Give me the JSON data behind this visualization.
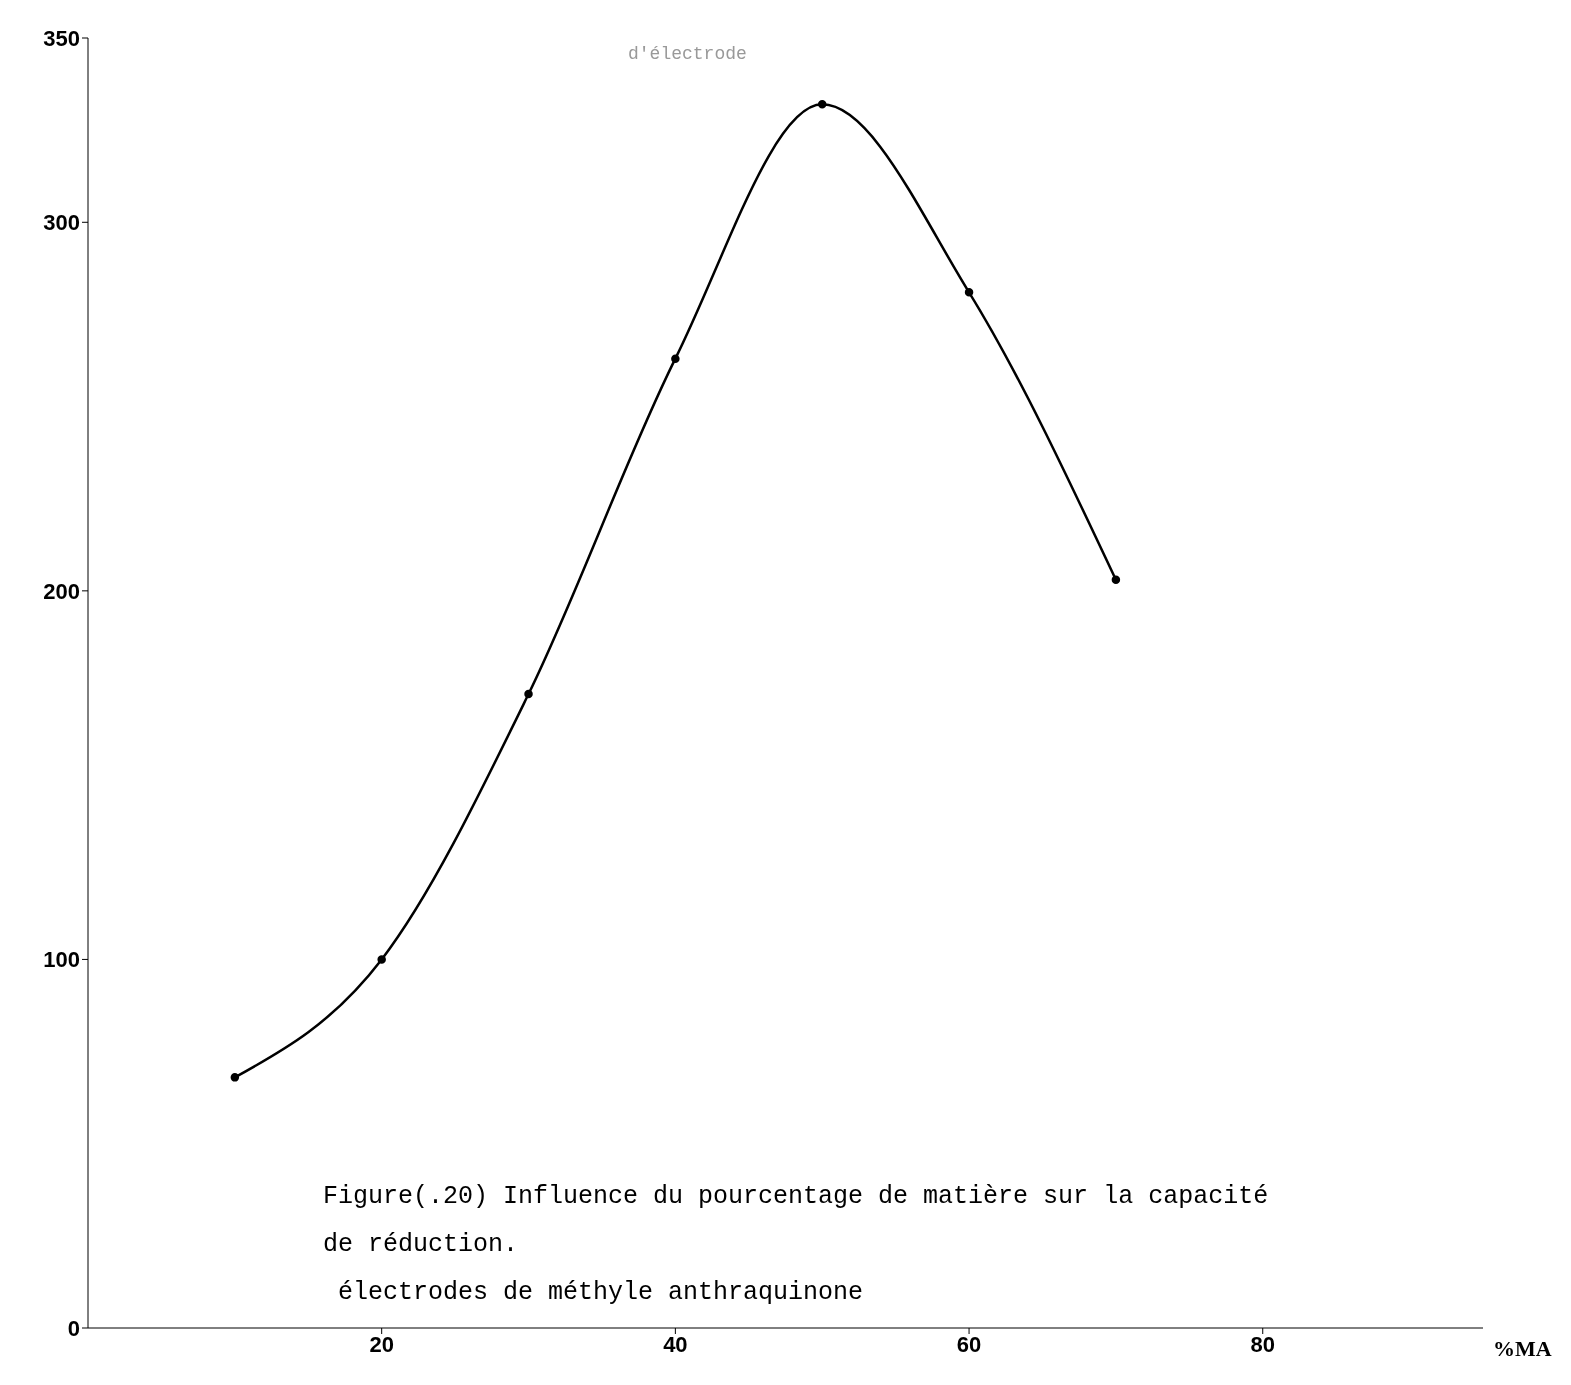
{
  "chart_data": {
    "type": "line",
    "xlabel": "%MA",
    "x": [
      10,
      20,
      30,
      40,
      50,
      60,
      70
    ],
    "series": [
      {
        "color": "#000000",
        "values": [
          68,
          100,
          172,
          263,
          332,
          281,
          203
        ]
      }
    ],
    "xlim": [
      0,
      95
    ],
    "ylim": [
      0,
      350
    ],
    "xticks": [
      20,
      40,
      60,
      80
    ],
    "yticks": [
      0,
      100,
      200,
      300,
      350
    ],
    "grid": false,
    "legend": false,
    "marker": "circle",
    "line_style": "solid",
    "annotations": [
      "d'électrode",
      "Figure(.20) Influence du pourcentage de matière sur la capacité",
      "de réduction.",
      " électrodes de méthyle anthraquinone"
    ]
  }
}
